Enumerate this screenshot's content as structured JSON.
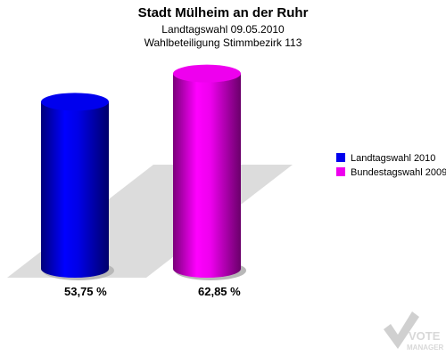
{
  "title": "Stadt Mülheim an der Ruhr",
  "subtitle1": "Landtagswahl 09.05.2010",
  "subtitle2": "Wahlbeteiligung Stimmbezirk 113",
  "watermark": {
    "line1": "VOTE",
    "line2": "MANAGER"
  },
  "chart_data": {
    "type": "bar",
    "style": "3d-cylinder",
    "title": "Stadt Mülheim an der Ruhr",
    "subtitle": [
      "Landtagswahl 09.05.2010",
      "Wahlbeteiligung Stimmbezirk 113"
    ],
    "categories": [
      "Landtagswahl 2010",
      "Bundestagswahl 2009"
    ],
    "series": [
      {
        "name": "Landtagswahl 2010",
        "value": 53.75,
        "label": "53,75 %",
        "color": "#0000ee"
      },
      {
        "name": "Bundestagswahl 2009",
        "value": 62.85,
        "label": "62,85 %",
        "color": "#ee00ee"
      }
    ],
    "ylim": [
      0,
      100
    ],
    "grid": false,
    "legend": "right"
  }
}
